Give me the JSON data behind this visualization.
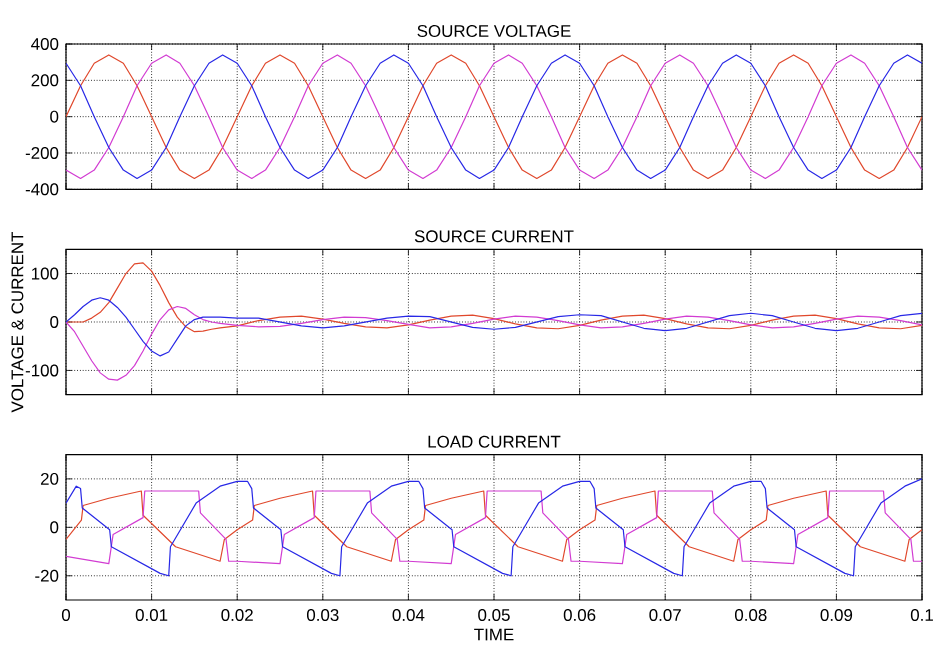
{
  "chart_data": [
    {
      "type": "line",
      "title": "SOURCE VOLTAGE",
      "xlim": [
        0,
        0.1
      ],
      "ylim": [
        -400,
        400
      ],
      "xticks": [
        0,
        0.01,
        0.02,
        0.03,
        0.04,
        0.05,
        0.06,
        0.07,
        0.08,
        0.09,
        0.1
      ],
      "yticks": [
        -400,
        -200,
        0,
        200,
        400
      ],
      "grid": true,
      "tick_labels": "y",
      "x": [
        0,
        0.0017,
        0.0033,
        0.005,
        0.0067,
        0.0083,
        0.01,
        0.0117,
        0.0133,
        0.015,
        0.0167,
        0.0183,
        0.02,
        0.0217,
        0.0233,
        0.025,
        0.0267,
        0.0283,
        0.03,
        0.0317,
        0.0333,
        0.035,
        0.0367,
        0.0383,
        0.04,
        0.0417,
        0.0433,
        0.045,
        0.0467,
        0.0483,
        0.05,
        0.0517,
        0.0533,
        0.055,
        0.0567,
        0.0583,
        0.06,
        0.0617,
        0.0633,
        0.065,
        0.0667,
        0.0683,
        0.07,
        0.0717,
        0.0733,
        0.075,
        0.0767,
        0.0783,
        0.08,
        0.0817,
        0.0833,
        0.085,
        0.0867,
        0.0883,
        0.09,
        0.0917,
        0.0933,
        0.095,
        0.0967,
        0.0983,
        0.1
      ],
      "series": [
        {
          "color": "#e0482c",
          "values": [
            0,
            170,
            294,
            340,
            294,
            170,
            0,
            -170,
            -294,
            -340,
            -294,
            -170,
            0,
            170,
            294,
            340,
            294,
            170,
            0,
            -170,
            -294,
            -340,
            -294,
            -170,
            0,
            170,
            294,
            340,
            294,
            170,
            0,
            -170,
            -294,
            -340,
            -294,
            -170,
            0,
            170,
            294,
            340,
            294,
            170,
            0,
            -170,
            -294,
            -340,
            -294,
            -170,
            0,
            170,
            294,
            340,
            294,
            170,
            0,
            -170,
            -294,
            -340,
            -294,
            -170,
            0
          ]
        },
        {
          "color": "#d23cd2",
          "values": [
            -294,
            -340,
            -294,
            -170,
            0,
            170,
            294,
            340,
            294,
            170,
            0,
            -170,
            -294,
            -340,
            -294,
            -170,
            0,
            170,
            294,
            340,
            294,
            170,
            0,
            -170,
            -294,
            -340,
            -294,
            -170,
            0,
            170,
            294,
            340,
            294,
            170,
            0,
            -170,
            -294,
            -340,
            -294,
            -170,
            0,
            170,
            294,
            340,
            294,
            170,
            0,
            -170,
            -294,
            -340,
            -294,
            -170,
            0,
            170,
            294,
            340,
            294,
            170,
            0,
            -170,
            -294
          ]
        },
        {
          "color": "#2828e6",
          "values": [
            294,
            170,
            0,
            -170,
            -294,
            -340,
            -294,
            -170,
            0,
            170,
            294,
            340,
            294,
            170,
            0,
            -170,
            -294,
            -340,
            -294,
            -170,
            0,
            170,
            294,
            340,
            294,
            170,
            0,
            -170,
            -294,
            -340,
            -294,
            -170,
            0,
            170,
            294,
            340,
            294,
            170,
            0,
            -170,
            -294,
            -340,
            -294,
            -170,
            0,
            170,
            294,
            340,
            294,
            170,
            0,
            -170,
            -294,
            -340,
            -294,
            -170,
            0,
            170,
            294,
            340,
            294
          ]
        }
      ]
    },
    {
      "type": "line",
      "title": "SOURCE CURRENT",
      "ylabel": "VOLTAGE & CURRENT",
      "xlim": [
        0,
        0.1
      ],
      "ylim": [
        -150,
        150
      ],
      "xticks": [
        0,
        0.01,
        0.02,
        0.03,
        0.04,
        0.05,
        0.06,
        0.07,
        0.08,
        0.09,
        0.1
      ],
      "yticks": [
        -100,
        0,
        100
      ],
      "grid": true,
      "tick_labels": "y",
      "x": [
        0,
        0.001,
        0.002,
        0.003,
        0.004,
        0.005,
        0.006,
        0.007,
        0.008,
        0.009,
        0.01,
        0.011,
        0.012,
        0.013,
        0.014,
        0.015,
        0.016,
        0.017,
        0.018,
        0.019,
        0.02,
        0.0225,
        0.025,
        0.0275,
        0.03,
        0.0325,
        0.035,
        0.0375,
        0.04,
        0.0425,
        0.045,
        0.0475,
        0.05,
        0.0525,
        0.055,
        0.0575,
        0.06,
        0.0625,
        0.065,
        0.0675,
        0.07,
        0.0725,
        0.075,
        0.0775,
        0.08,
        0.0825,
        0.085,
        0.0875,
        0.09,
        0.0925,
        0.095,
        0.0975,
        0.1
      ],
      "series": [
        {
          "color": "#e0482c",
          "values": [
            0,
            0,
            0,
            8,
            20,
            40,
            70,
            100,
            120,
            122,
            105,
            75,
            40,
            10,
            -10,
            -20,
            -19,
            -15,
            -12,
            -10,
            -8,
            3,
            10,
            12,
            6,
            -3,
            -10,
            -12,
            -6,
            4,
            12,
            14,
            7,
            -4,
            -12,
            -14,
            -7,
            4,
            12,
            14,
            7,
            -4,
            -12,
            -14,
            -7,
            4,
            12,
            14,
            7,
            -4,
            -12,
            -14,
            -7
          ]
        },
        {
          "color": "#d23cd2",
          "values": [
            0,
            -20,
            -50,
            -80,
            -105,
            -118,
            -120,
            -110,
            -90,
            -60,
            -25,
            5,
            25,
            32,
            28,
            15,
            5,
            0,
            -3,
            -5,
            -7,
            -10,
            -9,
            -3,
            5,
            10,
            9,
            3,
            -5,
            -12,
            -10,
            -3,
            6,
            12,
            10,
            3,
            -6,
            -12,
            -10,
            -3,
            6,
            12,
            10,
            3,
            -6,
            -12,
            -10,
            -3,
            6,
            12,
            10,
            3,
            -6
          ]
        },
        {
          "color": "#2828e6",
          "values": [
            0,
            15,
            32,
            45,
            50,
            45,
            30,
            10,
            -15,
            -40,
            -60,
            -70,
            -62,
            -35,
            -8,
            5,
            10,
            10,
            10,
            9,
            8,
            8,
            0,
            -8,
            -12,
            -8,
            0,
            8,
            12,
            11,
            0,
            -11,
            -15,
            -11,
            0,
            11,
            15,
            13,
            0,
            -13,
            -18,
            -13,
            0,
            13,
            18,
            13,
            0,
            -13,
            -18,
            -13,
            0,
            13,
            18
          ]
        }
      ]
    },
    {
      "type": "line",
      "title": "LOAD CURRENT",
      "xlabel": "TIME",
      "xlim": [
        0,
        0.1
      ],
      "ylim": [
        -30,
        30
      ],
      "xticks": [
        0,
        0.01,
        0.02,
        0.03,
        0.04,
        0.05,
        0.06,
        0.07,
        0.08,
        0.09,
        0.1
      ],
      "yticks": [
        -20,
        0,
        20
      ],
      "grid": true,
      "series": [
        {
          "color": "#e0482c",
          "x": [
            0,
            0.0018,
            0.002,
            0.005,
            0.0088,
            0.009,
            0.0128,
            0.018,
            0.0185,
            0.02,
            0.0218,
            0.022,
            0.025,
            0.0288,
            0.029,
            0.0328,
            0.038,
            0.0385,
            0.04,
            0.0418,
            0.042,
            0.045,
            0.0488,
            0.049,
            0.0528,
            0.058,
            0.0585,
            0.06,
            0.0618,
            0.062,
            0.065,
            0.0688,
            0.069,
            0.0728,
            0.078,
            0.0785,
            0.08,
            0.0818,
            0.082,
            0.085,
            0.0888,
            0.089,
            0.0928,
            0.098,
            0.0985,
            0.1
          ],
          "values": [
            -5,
            3,
            9,
            12,
            15,
            5,
            -8,
            -14,
            -5,
            -1,
            3,
            9,
            12,
            15,
            5,
            -8,
            -14,
            -5,
            -1,
            3,
            9,
            12,
            15,
            5,
            -8,
            -14,
            -5,
            -1,
            3,
            9,
            12,
            15,
            5,
            -8,
            -14,
            -5,
            -1,
            3,
            9,
            12,
            15,
            5,
            -8,
            -14,
            -5,
            -1
          ]
        },
        {
          "color": "#d23cd2",
          "x": [
            0,
            0.005,
            0.0055,
            0.009,
            0.0092,
            0.0155,
            0.0157,
            0.0187,
            0.019,
            0.02,
            0.025,
            0.0255,
            0.029,
            0.0292,
            0.0355,
            0.0357,
            0.0387,
            0.039,
            0.04,
            0.045,
            0.0455,
            0.049,
            0.0492,
            0.0555,
            0.0557,
            0.0587,
            0.059,
            0.06,
            0.065,
            0.0655,
            0.069,
            0.0692,
            0.0755,
            0.0757,
            0.0787,
            0.079,
            0.08,
            0.085,
            0.0855,
            0.089,
            0.0892,
            0.0955,
            0.0957,
            0.0987,
            0.099,
            0.1
          ],
          "values": [
            -12,
            -15,
            -3,
            4,
            15,
            15,
            6,
            -5,
            -14,
            -14,
            -15,
            -3,
            4,
            15,
            15,
            6,
            -5,
            -14,
            -14,
            -15,
            -3,
            4,
            15,
            15,
            6,
            -5,
            -14,
            -14,
            -15,
            -3,
            4,
            15,
            15,
            6,
            -5,
            -14,
            -14,
            -15,
            -3,
            4,
            15,
            15,
            6,
            -5,
            -14,
            -14
          ]
        },
        {
          "color": "#2828e6",
          "x": [
            0,
            0.0012,
            0.0017,
            0.0019,
            0.0051,
            0.0053,
            0.011,
            0.012,
            0.0122,
            0.0152,
            0.018,
            0.02,
            0.0212,
            0.0217,
            0.0219,
            0.0251,
            0.0253,
            0.031,
            0.032,
            0.0322,
            0.0352,
            0.038,
            0.04,
            0.0412,
            0.0417,
            0.0419,
            0.0451,
            0.0453,
            0.051,
            0.052,
            0.0522,
            0.0552,
            0.058,
            0.06,
            0.0612,
            0.0617,
            0.0619,
            0.0651,
            0.0653,
            0.071,
            0.072,
            0.0722,
            0.0752,
            0.078,
            0.08,
            0.0812,
            0.0817,
            0.0819,
            0.0851,
            0.0853,
            0.091,
            0.092,
            0.0922,
            0.0952,
            0.098,
            0.1
          ],
          "values": [
            10,
            17,
            16,
            8,
            -1,
            -8,
            -19,
            -20,
            -8,
            10,
            17,
            19,
            19,
            16,
            8,
            -1,
            -8,
            -19,
            -20,
            -8,
            10,
            17,
            19,
            19,
            16,
            8,
            -1,
            -8,
            -19,
            -20,
            -8,
            10,
            17,
            19,
            19,
            16,
            8,
            -1,
            -8,
            -19,
            -20,
            -8,
            10,
            17,
            19,
            19,
            16,
            8,
            -1,
            -8,
            -19,
            -20,
            -8,
            10,
            17,
            20
          ]
        }
      ]
    }
  ]
}
